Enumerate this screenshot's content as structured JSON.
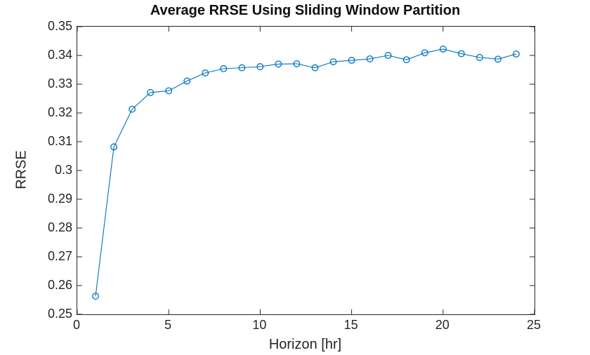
{
  "chart_data": {
    "type": "line",
    "title": "Average RRSE Using Sliding Window Partition",
    "xlabel": "Horizon [hr]",
    "ylabel": "RRSE",
    "x": [
      1,
      2,
      3,
      4,
      5,
      6,
      7,
      8,
      9,
      10,
      11,
      12,
      13,
      14,
      15,
      16,
      17,
      18,
      19,
      20,
      21,
      22,
      23,
      24
    ],
    "series": [
      {
        "name": "Average RRSE",
        "values": [
          0.2563,
          0.3082,
          0.3213,
          0.3271,
          0.3277,
          0.3311,
          0.3339,
          0.3354,
          0.3357,
          0.3361,
          0.337,
          0.3371,
          0.3357,
          0.3378,
          0.3383,
          0.3388,
          0.34,
          0.3385,
          0.3409,
          0.3422,
          0.3406,
          0.3393,
          0.3387,
          0.3405
        ]
      }
    ],
    "xlim": [
      0,
      25
    ],
    "ylim": [
      0.25,
      0.35
    ],
    "x_ticks": [
      0,
      5,
      10,
      15,
      20,
      25
    ],
    "x_tick_labels": [
      "0",
      "5",
      "10",
      "15",
      "20",
      "25"
    ],
    "y_ticks": [
      0.25,
      0.26,
      0.27,
      0.28,
      0.29,
      0.3,
      0.31,
      0.32,
      0.33,
      0.34,
      0.35
    ],
    "y_tick_labels": [
      "0.25",
      "0.26",
      "0.27",
      "0.28",
      "0.29",
      "0.3",
      "0.31",
      "0.32",
      "0.33",
      "0.34",
      "0.35"
    ],
    "grid": false,
    "legend": "none",
    "marker": "circle",
    "line_color": "#0072BD",
    "axis_color": "#262626",
    "background": "#FFFFFF"
  }
}
